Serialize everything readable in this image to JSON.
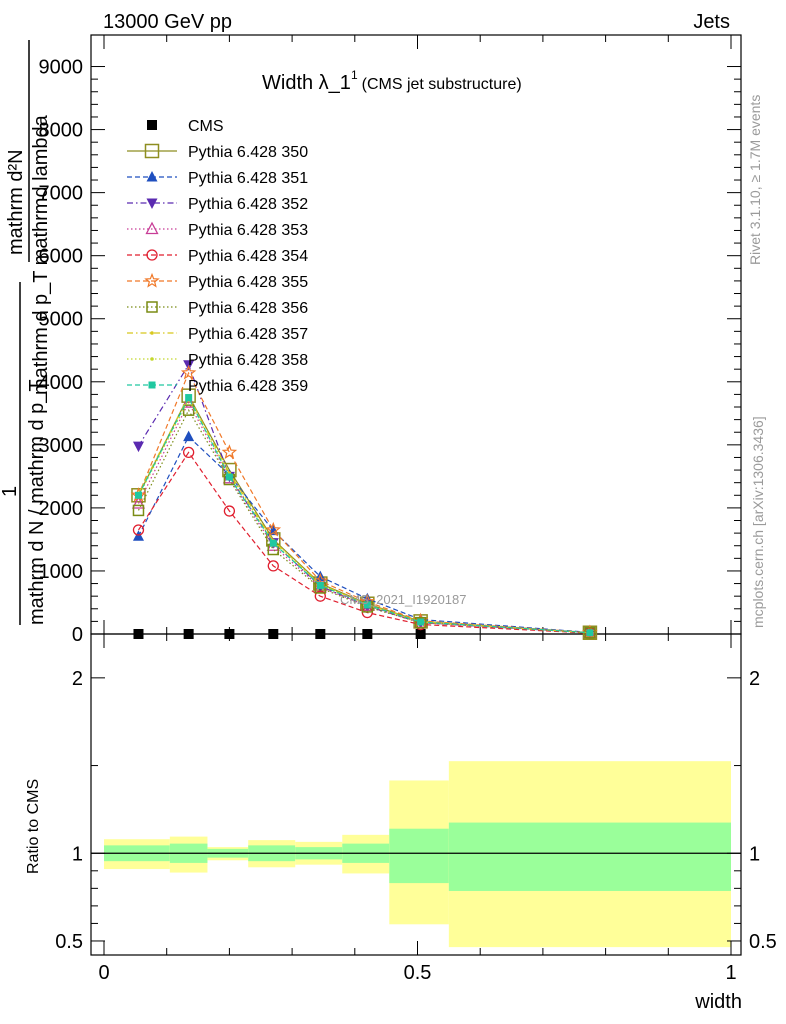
{
  "header": {
    "left": "13000 GeV pp",
    "right": "Jets"
  },
  "side_labels": {
    "rivet": "Rivet 3.1.10, ≥ 1.7M events",
    "mcplots": "mcplots.cern.ch [arXiv:1306.3436]"
  },
  "chart_data": [
    {
      "type": "line",
      "title": "Width λ_1",
      "title_sup": "1",
      "subtitle": "(CMS jet substructure)",
      "watermark": "CMS_2021_I1920187",
      "ylabel_numerator": "mathrm d²N",
      "ylabel_denominator_1": "mathrm d p_T mathrmd lambda",
      "ylabel_prefix": "1",
      "ylabel_denominator_2": "mathrm d N / mathrm d p_T",
      "xlim": [
        0,
        1
      ],
      "ylim": [
        0,
        9500
      ],
      "yticks": [
        0,
        1000,
        2000,
        3000,
        4000,
        5000,
        6000,
        7000,
        8000,
        9000
      ],
      "ytick_labels": [
        "0",
        "1000",
        "2000",
        "3000",
        "4000",
        "5000",
        "6000",
        "7000",
        "8000",
        "9000"
      ],
      "x": [
        0.055,
        0.135,
        0.2,
        0.27,
        0.345,
        0.42,
        0.505,
        0.775
      ],
      "series": [
        {
          "name": "CMS",
          "color": "#000000",
          "marker": "square-filled",
          "dash": "none",
          "values": [
            0,
            0,
            0,
            0,
            0,
            0,
            0,
            0
          ]
        },
        {
          "name": "Pythia 6.428 350",
          "color": "#8e8e20",
          "marker": "square-open-large",
          "dash": "solid",
          "values": [
            2200,
            3780,
            2600,
            1500,
            800,
            480,
            200,
            20
          ]
        },
        {
          "name": "Pythia 6.428 351",
          "color": "#1f4fbf",
          "marker": "triangle-up-filled",
          "dash": "dash",
          "values": [
            1550,
            3130,
            2520,
            1640,
            910,
            560,
            230,
            25
          ]
        },
        {
          "name": "Pythia 6.428 352",
          "color": "#5a2ab0",
          "marker": "triangle-down-filled",
          "dash": "dashdot",
          "values": [
            2980,
            4270,
            2500,
            1450,
            760,
            440,
            180,
            20
          ]
        },
        {
          "name": "Pythia 6.428 353",
          "color": "#c83c96",
          "marker": "triangle-up-open",
          "dash": "dot",
          "values": [
            2070,
            3670,
            2470,
            1400,
            740,
            450,
            180,
            20
          ]
        },
        {
          "name": "Pythia 6.428 354",
          "color": "#e01f2f",
          "marker": "circle-open",
          "dash": "dash",
          "values": [
            1650,
            2880,
            1950,
            1080,
            600,
            340,
            150,
            15
          ]
        },
        {
          "name": "Pythia 6.428 355",
          "color": "#f07828",
          "marker": "star-open",
          "dash": "dash",
          "values": [
            2200,
            4140,
            2880,
            1650,
            840,
            510,
            210,
            22
          ]
        },
        {
          "name": "Pythia 6.428 356",
          "color": "#7a8c14",
          "marker": "square-open",
          "dash": "dot",
          "values": [
            1960,
            3550,
            2450,
            1340,
            730,
            430,
            180,
            20
          ]
        },
        {
          "name": "Pythia 6.428 357",
          "color": "#d8c81e",
          "marker": "small-dot",
          "dash": "dashdot",
          "values": [
            2230,
            3770,
            2550,
            1480,
            790,
            470,
            195,
            21
          ]
        },
        {
          "name": "Pythia 6.428 358",
          "color": "#c4d82c",
          "marker": "small-dot",
          "dash": "dot",
          "values": [
            2180,
            3720,
            2520,
            1460,
            780,
            460,
            190,
            21
          ]
        },
        {
          "name": "Pythia 6.428 359",
          "color": "#20c8a0",
          "marker": "square-small-filled",
          "dash": "dash",
          "values": [
            2200,
            3750,
            2490,
            1440,
            770,
            460,
            190,
            20
          ]
        }
      ]
    },
    {
      "type": "area",
      "ylabel": "Ratio to CMS",
      "xlabel": "width",
      "xlim": [
        0,
        1
      ],
      "ylim": [
        0.42,
        2.25
      ],
      "yticks": [
        0.5,
        1,
        2
      ],
      "ytick_labels": [
        "0.5",
        "1",
        "2"
      ],
      "xticks": [
        0,
        0.5,
        1
      ],
      "xtick_labels": [
        "0",
        "0.5",
        "1"
      ],
      "bin_edges": [
        0,
        0.105,
        0.165,
        0.23,
        0.305,
        0.38,
        0.455,
        0.55,
        1.0
      ],
      "band_inner_low": [
        0.955,
        0.945,
        0.975,
        0.955,
        0.965,
        0.945,
        0.83,
        0.785
      ],
      "band_inner_high": [
        1.045,
        1.055,
        1.025,
        1.045,
        1.035,
        1.055,
        1.14,
        1.175
      ],
      "band_outer_low": [
        0.91,
        0.89,
        0.96,
        0.92,
        0.935,
        0.885,
        0.595,
        0.465
      ],
      "band_outer_high": [
        1.08,
        1.095,
        1.035,
        1.075,
        1.065,
        1.105,
        1.415,
        1.525
      ],
      "inner_color": "#9aff9a",
      "outer_color": "#ffff99"
    }
  ]
}
